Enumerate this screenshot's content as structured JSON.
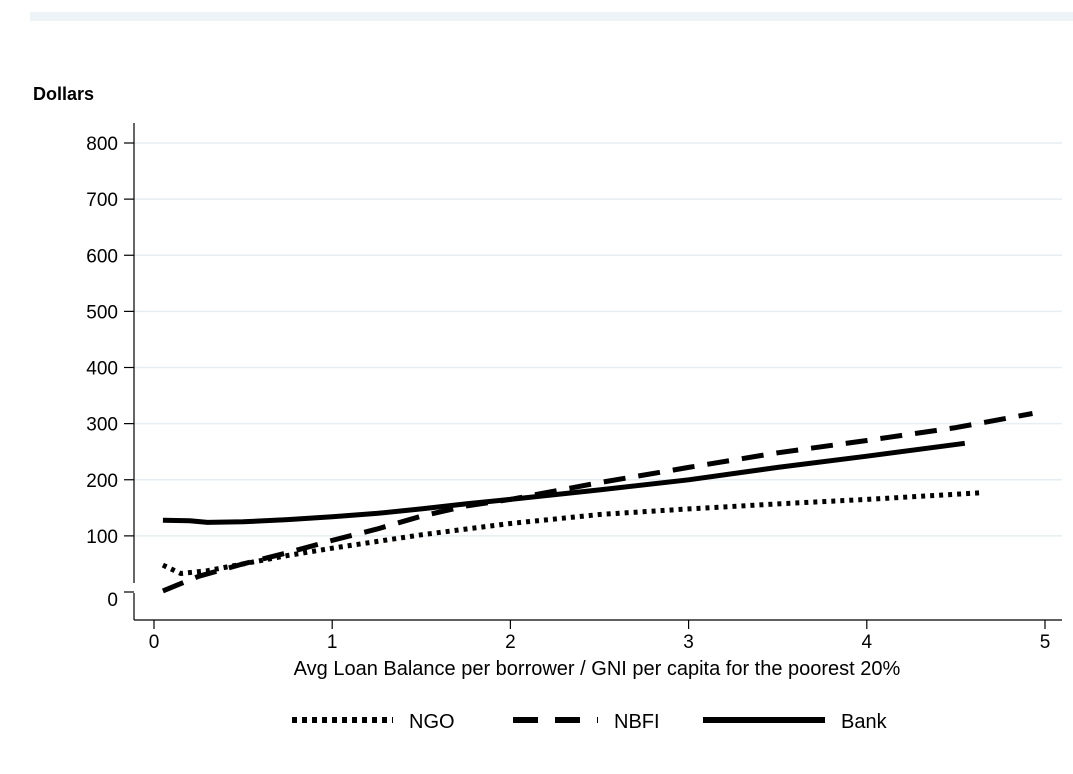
{
  "chart_data": {
    "type": "line",
    "ylabel": "Dollars",
    "xlabel": "Avg Loan Balance per borrower / GNI per capita for the poorest 20%",
    "xlim": [
      0,
      5
    ],
    "ylim": [
      0,
      800
    ],
    "x_ticks": [
      "0",
      "1",
      "2",
      "3",
      "4",
      "5"
    ],
    "y_ticks": [
      "0",
      "100",
      "200",
      "300",
      "400",
      "500",
      "600",
      "700",
      "800"
    ],
    "grid": true,
    "legend_position": "bottom",
    "series": [
      {
        "name": "NGO",
        "style": "dotted",
        "color": "#000000",
        "x": [
          0.05,
          0.15,
          0.3,
          0.5,
          0.75,
          1.0,
          1.25,
          1.5,
          1.75,
          2.0,
          2.5,
          3.0,
          3.5,
          4.0,
          4.65
        ],
        "y": [
          48,
          33,
          38,
          50,
          65,
          78,
          90,
          102,
          112,
          122,
          138,
          148,
          157,
          165,
          177
        ]
      },
      {
        "name": "NBFI",
        "style": "dashed",
        "color": "#000000",
        "x": [
          0.05,
          0.25,
          0.5,
          0.75,
          1.0,
          1.25,
          1.5,
          1.75,
          2.0,
          2.5,
          3.0,
          3.5,
          4.0,
          4.5,
          4.93
        ],
        "y": [
          2,
          28,
          50,
          70,
          92,
          112,
          135,
          153,
          165,
          195,
          222,
          248,
          270,
          293,
          318
        ]
      },
      {
        "name": "Bank",
        "style": "solid",
        "color": "#000000",
        "x": [
          0.05,
          0.2,
          0.3,
          0.5,
          0.75,
          1.0,
          1.25,
          1.5,
          1.75,
          2.0,
          2.5,
          3.0,
          3.5,
          4.0,
          4.55
        ],
        "y": [
          128,
          127,
          124,
          125,
          129,
          134,
          140,
          148,
          157,
          165,
          182,
          200,
          222,
          242,
          265
        ]
      }
    ]
  }
}
